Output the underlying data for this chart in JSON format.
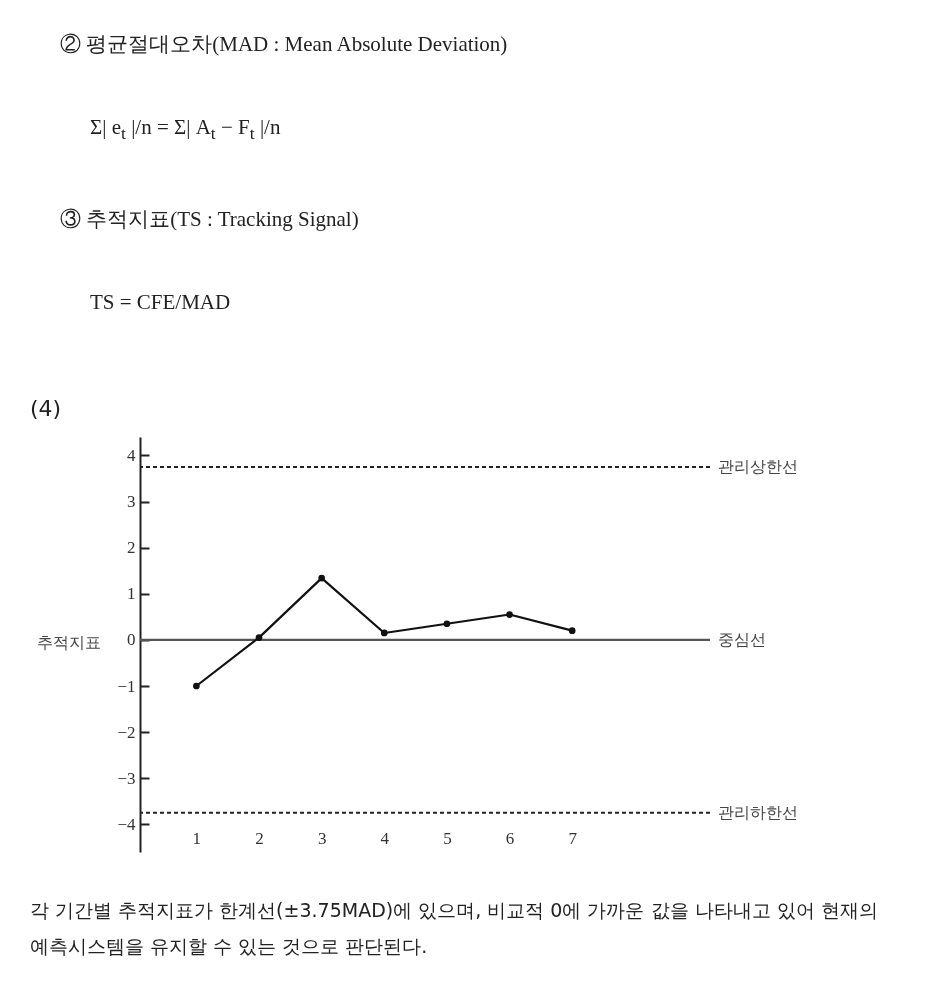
{
  "chart_data": {
    "type": "line",
    "title": "(4)",
    "ylabel": "추적지표",
    "x": [
      1,
      2,
      3,
      4,
      5,
      6,
      7
    ],
    "series": [
      {
        "color": "#111111",
        "values": [
          -1.0,
          0.05,
          1.34,
          0.15,
          0.35,
          0.55,
          0.2
        ]
      }
    ],
    "xlim": [
      0.1,
      9.2
    ],
    "xticks": [
      1,
      2,
      3,
      4,
      5,
      6,
      7
    ],
    "ylim": [
      -4.6,
      4.4
    ],
    "yticks": [
      -4,
      -3,
      -2,
      -1,
      0,
      1,
      2,
      3,
      4
    ],
    "marker": "circle",
    "line_style": "solid",
    "ref_lines": [
      {
        "axis": "y",
        "value": 3.75,
        "label": "관리상한선",
        "line_style": "dashed",
        "color": "#222222"
      },
      {
        "axis": "y",
        "value": 0,
        "label": "중심선",
        "line_style": "solid",
        "color": "#555555"
      },
      {
        "axis": "y",
        "value": -3.75,
        "label": "관리하한선",
        "line_style": "dashed",
        "color": "#222222"
      }
    ],
    "annotations": [
      "② 평균절대오차(MAD : Mean Absolute Deviation)",
      "Σ| e$_{t}$ |/n = Σ| A$_{t}$ − F$_{t}$ |/n",
      "③ 추적지표(TS : Tracking Signal)",
      "TS = CFE/MAD",
      "각 기간별 추적지표가 한계선(±3.75MAD)에 있으며, 비교적 0에 가까운 값을 나타내고 있어 현재의 예측시스템을 유지할 수 있는 것으로 판단된다."
    ]
  }
}
